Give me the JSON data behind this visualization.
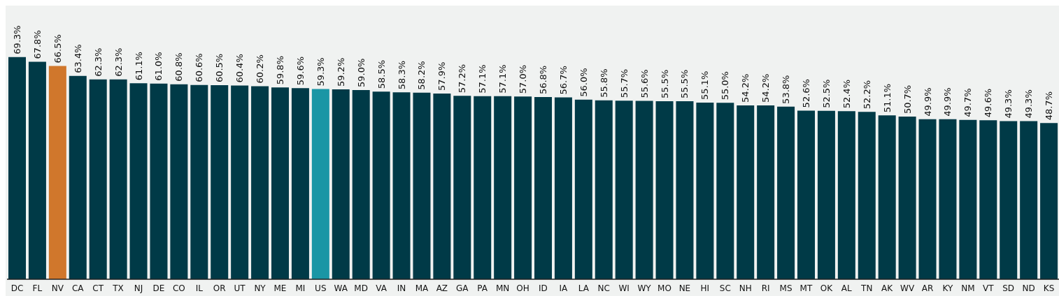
{
  "chart_data": {
    "type": "bar",
    "categories": [
      "DC",
      "FL",
      "NV",
      "CA",
      "CT",
      "TX",
      "NJ",
      "DE",
      "CO",
      "IL",
      "OR",
      "UT",
      "NY",
      "ME",
      "MI",
      "US",
      "WA",
      "MD",
      "VA",
      "IN",
      "MA",
      "AZ",
      "GA",
      "PA",
      "MN",
      "OH",
      "ID",
      "IA",
      "LA",
      "NC",
      "WI",
      "WY",
      "MO",
      "NE",
      "HI",
      "SC",
      "NH",
      "RI",
      "MS",
      "MT",
      "OK",
      "AL",
      "TN",
      "AK",
      "WV",
      "AR",
      "KY",
      "NM",
      "VT",
      "SD",
      "ND",
      "KS"
    ],
    "values": [
      69.3,
      67.8,
      66.5,
      63.4,
      62.3,
      62.3,
      61.1,
      61.0,
      60.8,
      60.6,
      60.5,
      60.4,
      60.2,
      59.8,
      59.6,
      59.3,
      59.2,
      59.0,
      58.5,
      58.3,
      58.2,
      57.9,
      57.2,
      57.1,
      57.1,
      57.0,
      56.8,
      56.7,
      56.0,
      55.8,
      55.7,
      55.6,
      55.5,
      55.5,
      55.1,
      55.0,
      54.2,
      54.2,
      53.8,
      52.6,
      52.5,
      52.4,
      52.2,
      51.1,
      50.7,
      49.9,
      49.9,
      49.7,
      49.6,
      49.3,
      49.3,
      48.7
    ],
    "value_labels": [
      "69.3%",
      "67.8%",
      "66.5%",
      "63.4%",
      "62.3%",
      "62.3%",
      "61.1%",
      "61.0%",
      "60.8%",
      "60.6%",
      "60.5%",
      "60.4%",
      "60.2%",
      "59.8%",
      "59.6%",
      "59.3%",
      "59.2%",
      "59.0%",
      "58.5%",
      "58.3%",
      "58.2%",
      "57.9%",
      "57.2%",
      "57.1%",
      "57.1%",
      "57.0%",
      "56.8%",
      "56.7%",
      "56.0%",
      "55.8%",
      "55.7%",
      "55.6%",
      "55.5%",
      "55.5%",
      "55.1%",
      "55.0%",
      "54.2%",
      "54.2%",
      "53.8%",
      "52.6%",
      "52.5%",
      "52.4%",
      "52.2%",
      "51.1%",
      "50.7%",
      "49.9%",
      "49.9%",
      "49.7%",
      "49.6%",
      "49.3%",
      "49.3%",
      "48.7%"
    ],
    "colors": [
      "#003a47",
      "#003a47",
      "#d0772c",
      "#003a47",
      "#003a47",
      "#003a47",
      "#003a47",
      "#003a47",
      "#003a47",
      "#003a47",
      "#003a47",
      "#003a47",
      "#003a47",
      "#003a47",
      "#003a47",
      "#1a96a5",
      "#003a47",
      "#003a47",
      "#003a47",
      "#003a47",
      "#003a47",
      "#003a47",
      "#003a47",
      "#003a47",
      "#003a47",
      "#003a47",
      "#003a47",
      "#003a47",
      "#003a47",
      "#003a47",
      "#003a47",
      "#003a47",
      "#003a47",
      "#003a47",
      "#003a47",
      "#003a47",
      "#003a47",
      "#003a47",
      "#003a47",
      "#003a47",
      "#003a47",
      "#003a47",
      "#003a47",
      "#003a47",
      "#003a47",
      "#003a47",
      "#003a47",
      "#003a47",
      "#003a47",
      "#003a47",
      "#003a47",
      "#003a47"
    ]
  }
}
